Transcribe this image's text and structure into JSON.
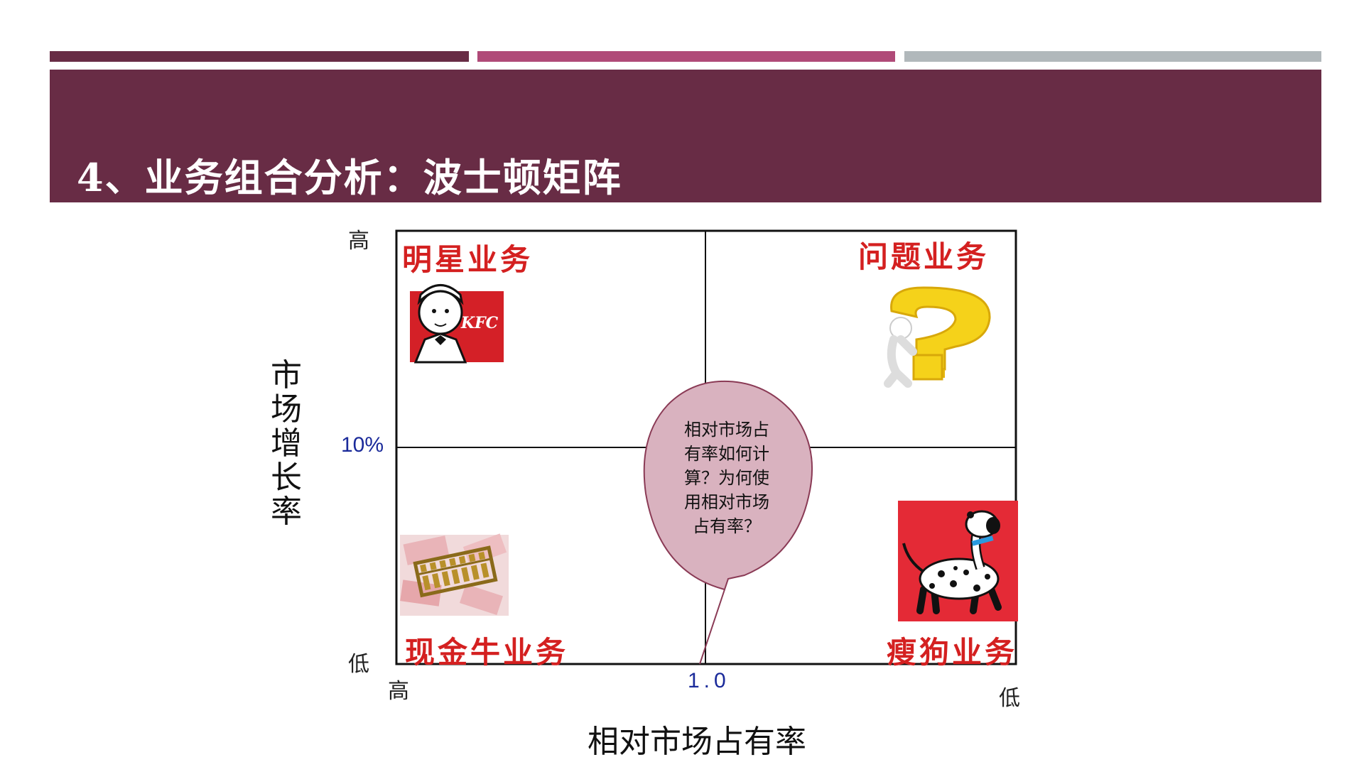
{
  "slide": {
    "title": "4、业务组合分析：波士顿矩阵",
    "colors": {
      "bar1": "#682c45",
      "bar2": "#b04a78",
      "bar3": "#b1b8bb",
      "header": "#682c45"
    }
  },
  "matrix": {
    "y_axis": {
      "title": "市场增长率",
      "high": "高",
      "low": "低",
      "midpoint": "10%"
    },
    "x_axis": {
      "title": "相对市场占有率",
      "high": "高",
      "low": "低",
      "midpoint": "1.0"
    },
    "quadrants": {
      "top_left": {
        "label": "明星业务",
        "icon": "kfc-colonel-logo"
      },
      "top_right": {
        "label": "问题业务",
        "icon": "question-mark-figure"
      },
      "bottom_left": {
        "label": "现金牛业务",
        "icon": "abacus-money"
      },
      "bottom_right": {
        "label": "瘦狗业务",
        "icon": "dalmatian-dog"
      }
    },
    "callout": {
      "lines": [
        "相对市场占",
        "有率如何计",
        "算？为何使",
        "用相对市场",
        "占有率？"
      ]
    },
    "colors": {
      "quad_label": "#d42020",
      "axis_number": "#1a2a9a",
      "callout_fill": "#d9b2bf",
      "callout_stroke": "#8a3a55"
    }
  }
}
